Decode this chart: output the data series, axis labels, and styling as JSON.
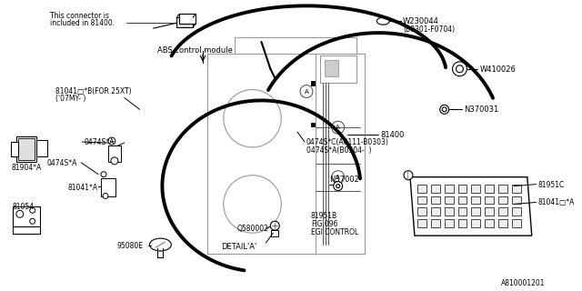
{
  "bg_color": "#ffffff",
  "lc": "#000000",
  "gray": "#aaaaaa",
  "labels": {
    "connector_note1": "This connector is",
    "connector_note2": "included in 81400.",
    "abs_module": "ABS control module",
    "81041D": "81041□*B(FOR 25XT)",
    "07MY": "('07MY- )",
    "81904A": "81904*A",
    "0474S_A1": "0474S*A",
    "0474S_A2": "0474S*A",
    "81041A": "81041*A",
    "81054": "81054",
    "95080E": "95080E",
    "81400": "81400",
    "0474SC": "0474S*C(A0111-B0303)",
    "0474SA": "0474S*A(B0304-  )",
    "N37002": "N37002",
    "81951C": "81951C",
    "81041_A": "81041□*A",
    "81951B": "81951B",
    "FIG096": "FIG.096",
    "EGI": "EGI CONTROL",
    "Q580002": "Q580002",
    "DETAIL_A": "DETAIL*A*",
    "W230044": "W230044",
    "B0301": "(B0301-F0704)",
    "W410026": "W410026",
    "N370031": "N370031",
    "A810001201": "A810001201"
  }
}
